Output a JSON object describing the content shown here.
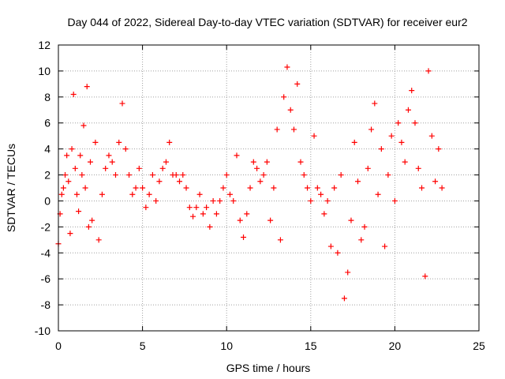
{
  "chart_data": {
    "type": "scatter",
    "title": "Day 044 of 2022, Sidereal Day-to-day VTEC variation (SDTVAR) for receiver eur2",
    "xlabel": "GPS time / hours",
    "ylabel": "SDTVAR / TECUs",
    "xlim": [
      0,
      25
    ],
    "ylim": [
      -10,
      12
    ],
    "xticks": [
      0,
      5,
      10,
      15,
      20,
      25
    ],
    "yticks": [
      -10,
      -8,
      -6,
      -4,
      -2,
      0,
      2,
      4,
      6,
      8,
      10,
      12
    ],
    "grid": true,
    "marker": "+",
    "color": "#ff0000",
    "series": [
      {
        "name": "SDTVAR",
        "x": [
          0.0,
          0.1,
          0.2,
          0.3,
          0.4,
          0.5,
          0.6,
          0.7,
          0.8,
          0.9,
          1.0,
          1.1,
          1.2,
          1.3,
          1.4,
          1.5,
          1.6,
          1.7,
          1.8,
          1.9,
          2.0,
          2.2,
          2.4,
          2.6,
          2.8,
          3.0,
          3.2,
          3.4,
          3.6,
          3.8,
          4.0,
          4.2,
          4.4,
          4.6,
          4.8,
          5.0,
          5.2,
          5.4,
          5.6,
          5.8,
          6.0,
          6.2,
          6.4,
          6.6,
          6.8,
          7.0,
          7.2,
          7.4,
          7.6,
          7.8,
          8.0,
          8.2,
          8.4,
          8.6,
          8.8,
          9.0,
          9.2,
          9.4,
          9.6,
          9.8,
          10.0,
          10.2,
          10.4,
          10.6,
          10.8,
          11.0,
          11.2,
          11.4,
          11.6,
          11.8,
          12.0,
          12.2,
          12.4,
          12.6,
          12.8,
          13.0,
          13.2,
          13.4,
          13.6,
          13.8,
          14.0,
          14.2,
          14.4,
          14.6,
          14.8,
          15.0,
          15.2,
          15.4,
          15.6,
          15.8,
          16.0,
          16.2,
          16.4,
          16.6,
          16.8,
          17.0,
          17.2,
          17.4,
          17.6,
          17.8,
          18.0,
          18.2,
          18.4,
          18.6,
          18.8,
          19.0,
          19.2,
          19.4,
          19.6,
          19.8,
          20.0,
          20.2,
          20.4,
          20.6,
          20.8,
          21.0,
          21.2,
          21.4,
          21.6,
          21.8,
          22.0,
          22.2,
          22.4,
          22.6,
          22.8
        ],
        "y": [
          -3.3,
          -1.0,
          0.5,
          1.0,
          2.0,
          3.5,
          1.5,
          -2.5,
          4.0,
          8.2,
          2.5,
          0.5,
          -0.8,
          3.5,
          2.0,
          5.8,
          1.0,
          8.8,
          -2.0,
          3.0,
          -1.5,
          4.5,
          -3.0,
          0.5,
          2.5,
          3.5,
          3.0,
          2.0,
          4.5,
          7.5,
          4.0,
          2.0,
          0.5,
          1.0,
          2.5,
          1.0,
          -0.5,
          0.5,
          2.0,
          0.0,
          1.5,
          2.5,
          3.0,
          4.5,
          2.0,
          2.0,
          1.5,
          2.0,
          1.0,
          -0.5,
          -1.2,
          -0.5,
          0.5,
          -1.0,
          -0.5,
          -2.0,
          0.0,
          -1.0,
          0.0,
          1.0,
          2.0,
          0.5,
          0.0,
          3.5,
          -1.5,
          -2.8,
          -1.0,
          1.0,
          3.0,
          2.5,
          1.5,
          2.0,
          3.0,
          -1.5,
          1.0,
          5.5,
          -3.0,
          8.0,
          10.3,
          7.0,
          5.5,
          9.0,
          3.0,
          2.0,
          1.0,
          0.0,
          5.0,
          1.0,
          0.5,
          -1.0,
          0.0,
          -3.5,
          1.0,
          -4.0,
          2.0,
          -7.5,
          -5.5,
          -1.5,
          4.5,
          1.5,
          -3.0,
          -2.0,
          2.5,
          5.5,
          7.5,
          0.5,
          4.0,
          -3.5,
          2.0,
          5.0,
          0.0,
          6.0,
          4.5,
          3.0,
          7.0,
          8.5,
          6.0,
          2.5,
          1.0,
          -5.8,
          10.0,
          5.0,
          1.5,
          4.0,
          1.0
        ]
      }
    ]
  }
}
